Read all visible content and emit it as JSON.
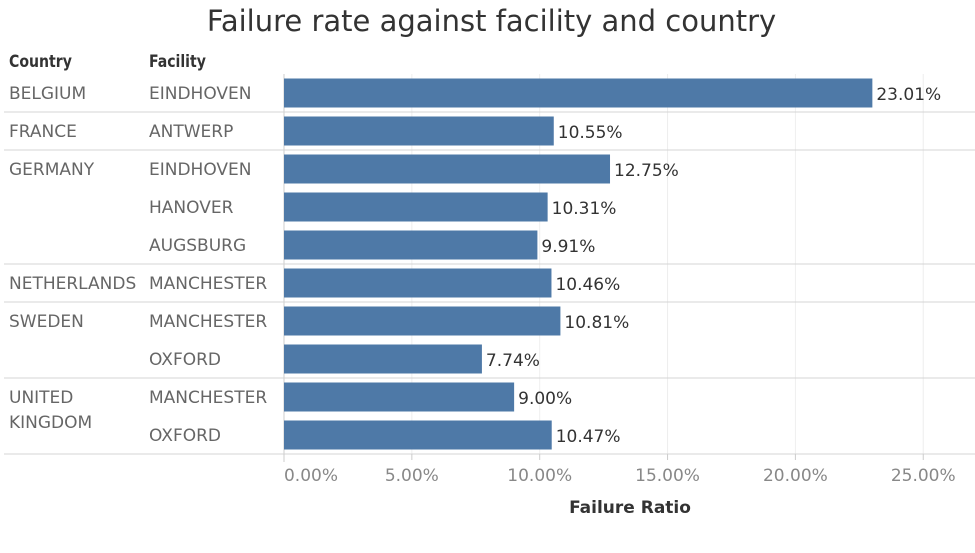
{
  "chart_data": {
    "type": "bar",
    "orientation": "horizontal",
    "title": "Failure rate against facility and country",
    "row_headers": [
      "Country",
      "Facility"
    ],
    "xlabel": "Failure Ratio",
    "xlim": [
      0,
      27
    ],
    "x_ticks": [
      "0.00%",
      "5.00%",
      "10.00%",
      "15.00%",
      "20.00%",
      "25.00%"
    ],
    "x_tick_values": [
      0,
      5,
      10,
      15,
      20,
      25
    ],
    "bar_color": "#4e79a7",
    "groups": [
      {
        "country": [
          "BELGIUM"
        ],
        "rows": [
          {
            "facility": "EINDHOVEN",
            "value": 23.01,
            "label": "23.01%"
          }
        ]
      },
      {
        "country": [
          "FRANCE"
        ],
        "rows": [
          {
            "facility": "ANTWERP",
            "value": 10.55,
            "label": "10.55%"
          }
        ]
      },
      {
        "country": [
          "GERMANY"
        ],
        "rows": [
          {
            "facility": "EINDHOVEN",
            "value": 12.75,
            "label": "12.75%"
          },
          {
            "facility": "HANOVER",
            "value": 10.31,
            "label": "10.31%"
          },
          {
            "facility": "AUGSBURG",
            "value": 9.91,
            "label": "9.91%"
          }
        ]
      },
      {
        "country": [
          "NETHERLANDS"
        ],
        "rows": [
          {
            "facility": "MANCHESTER",
            "value": 10.46,
            "label": "10.46%"
          }
        ]
      },
      {
        "country": [
          "SWEDEN"
        ],
        "rows": [
          {
            "facility": "MANCHESTER",
            "value": 10.81,
            "label": "10.81%"
          },
          {
            "facility": "OXFORD",
            "value": 7.74,
            "label": "7.74%"
          }
        ]
      },
      {
        "country": [
          "UNITED",
          "KINGDOM"
        ],
        "rows": [
          {
            "facility": "MANCHESTER",
            "value": 9.0,
            "label": "9.00%"
          },
          {
            "facility": "OXFORD",
            "value": 10.47,
            "label": "10.47%"
          }
        ]
      }
    ]
  }
}
